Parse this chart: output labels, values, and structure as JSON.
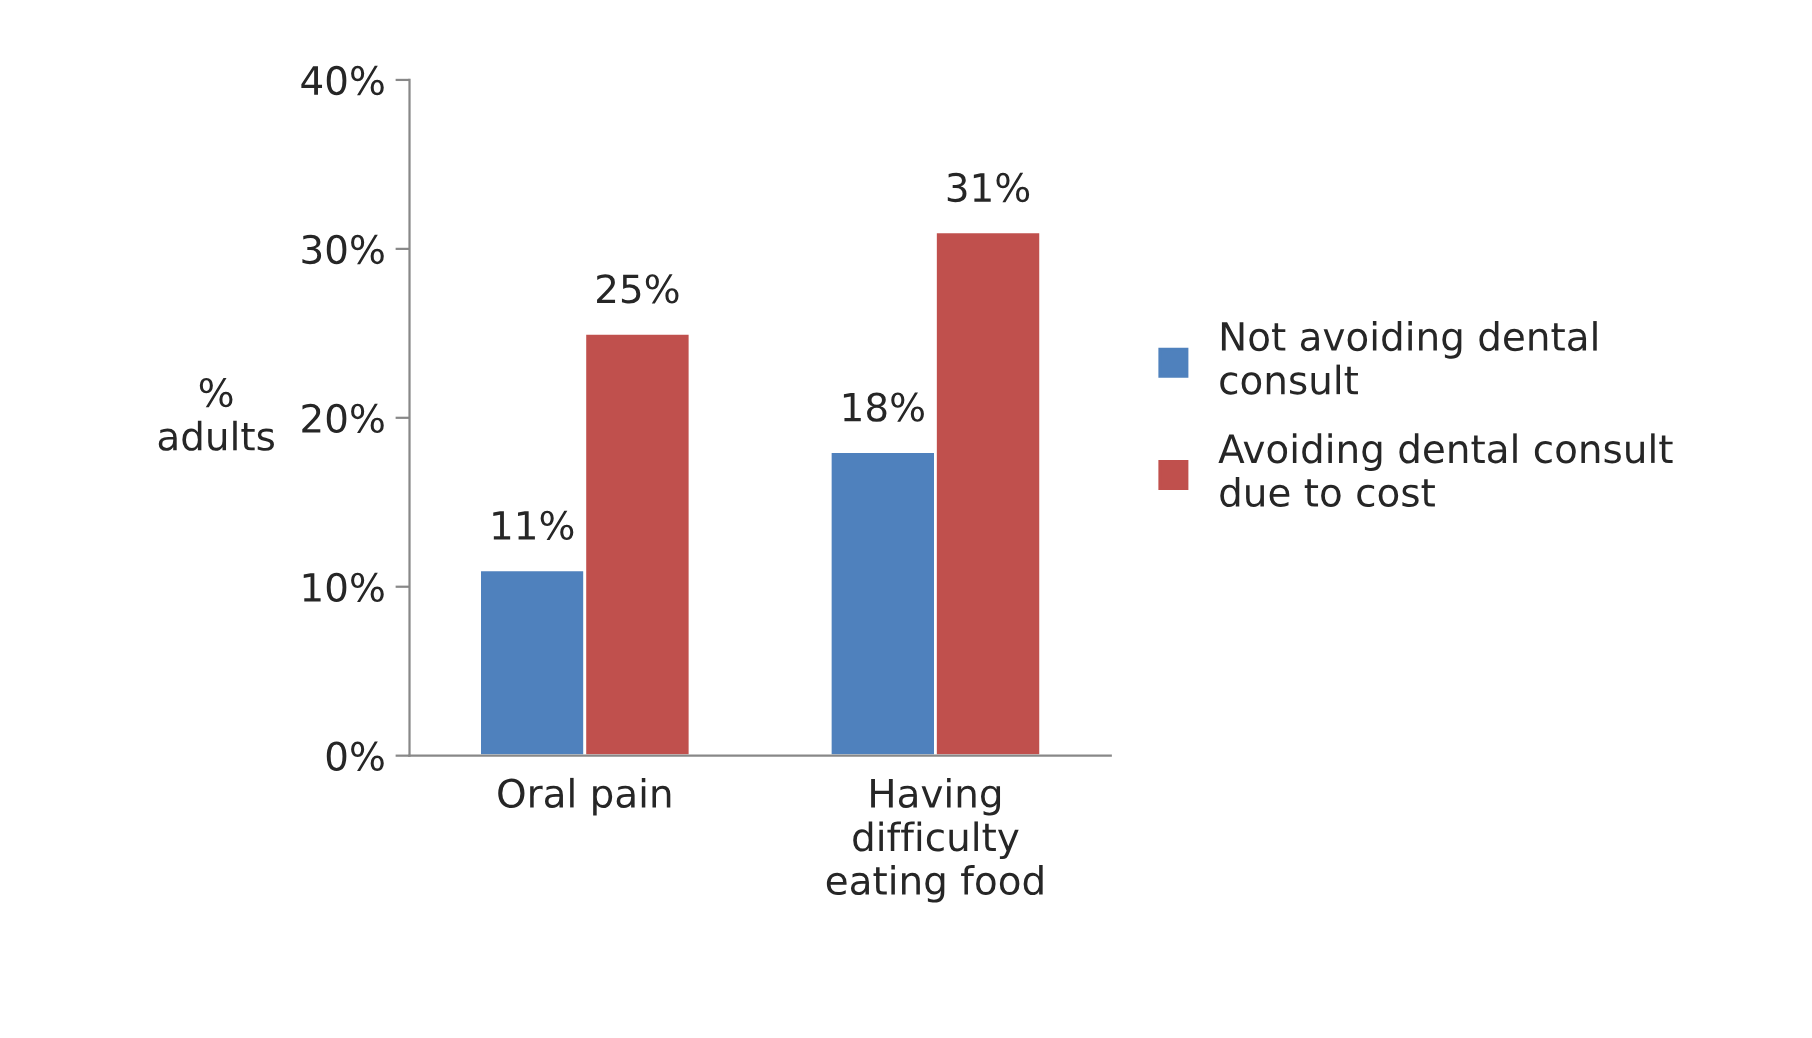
{
  "chart_data": {
    "type": "bar",
    "ylabel": "%\nadults",
    "categories": [
      "Oral pain",
      "Having\ndifficulty\neating food"
    ],
    "series": [
      {
        "name": "Not avoiding dental\nconsult",
        "color": "#4f81bd",
        "values": [
          11,
          18
        ],
        "value_labels": [
          "11%",
          "18%"
        ]
      },
      {
        "name": "Avoiding dental consult\ndue to cost",
        "color": "#c0504d",
        "values": [
          25,
          31
        ],
        "value_labels": [
          "25%",
          "31%"
        ]
      }
    ],
    "ylim": [
      0,
      40
    ],
    "yticks": [
      {
        "value": 0,
        "label": "0%"
      },
      {
        "value": 10,
        "label": "10%"
      },
      {
        "value": 20,
        "label": "20%"
      },
      {
        "value": 30,
        "label": "30%"
      },
      {
        "value": 40,
        "label": "40%"
      }
    ],
    "grid": false,
    "legend": "right"
  }
}
